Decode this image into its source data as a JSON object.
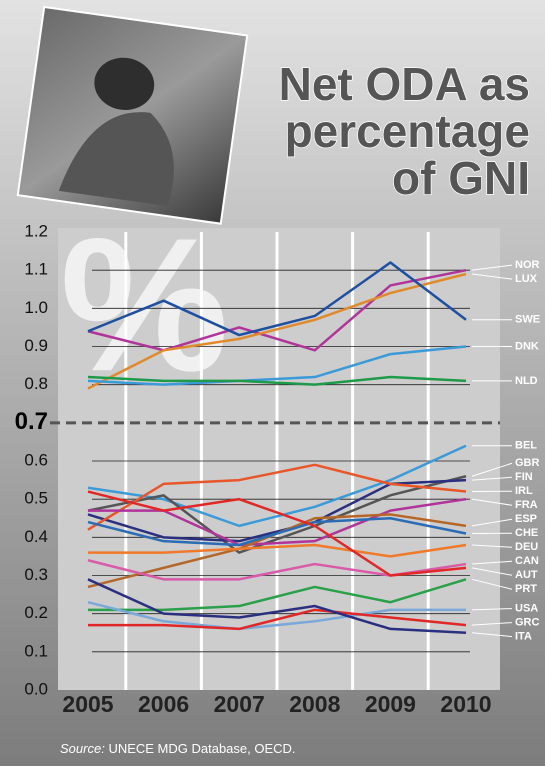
{
  "chart_data": {
    "type": "line",
    "title": [
      "Net ODA as",
      "percentage",
      "of GNI"
    ],
    "watermark": "%",
    "categories": [
      "2005",
      "2006",
      "2007",
      "2008",
      "2009",
      "2010"
    ],
    "ylim": [
      0,
      1.2
    ],
    "yticks": [
      {
        "value": 0,
        "label": "0.0"
      },
      0.1,
      0.2,
      0.3,
      0.4,
      0.5,
      0.6,
      0.7,
      0.8,
      0.9,
      {
        "value": 1,
        "label": "1.0"
      },
      1.1,
      1.2
    ],
    "reference_line": 0.7,
    "grid": true,
    "series": [
      {
        "name": "NOR",
        "color": "#b0349a",
        "values": [
          0.94,
          0.89,
          0.95,
          0.89,
          1.06,
          1.1
        ]
      },
      {
        "name": "LUX",
        "color": "#e08a2c",
        "values": [
          0.79,
          0.89,
          0.92,
          0.97,
          1.04,
          1.09
        ]
      },
      {
        "name": "SWE",
        "color": "#1f4fa0",
        "values": [
          0.94,
          1.02,
          0.93,
          0.98,
          1.12,
          0.97
        ]
      },
      {
        "name": "DNK",
        "color": "#3b9ad8",
        "values": [
          0.81,
          0.8,
          0.81,
          0.82,
          0.88,
          0.9
        ]
      },
      {
        "name": "NLD",
        "color": "#1e9a4a",
        "values": [
          0.82,
          0.81,
          0.81,
          0.8,
          0.82,
          0.81
        ]
      },
      {
        "name": "BEL",
        "color": "#3b9ad8",
        "values": [
          0.53,
          0.5,
          0.43,
          0.48,
          0.55,
          0.64
        ]
      },
      {
        "name": "GBR",
        "color": "#555555",
        "values": [
          0.47,
          0.51,
          0.36,
          0.43,
          0.51,
          0.56
        ]
      },
      {
        "name": "FIN",
        "color": "#2a2f80",
        "values": [
          0.46,
          0.4,
          0.39,
          0.44,
          0.54,
          0.55
        ]
      },
      {
        "name": "IRL",
        "color": "#e8562a",
        "values": [
          0.42,
          0.54,
          0.55,
          0.59,
          0.54,
          0.52
        ]
      },
      {
        "name": "FRA",
        "color": "#b0349a",
        "values": [
          0.47,
          0.47,
          0.38,
          0.39,
          0.47,
          0.5
        ]
      },
      {
        "name": "ESP",
        "color": "#b5672a",
        "values": [
          0.27,
          0.32,
          0.37,
          0.45,
          0.46,
          0.43
        ]
      },
      {
        "name": "CHE",
        "color": "#2b6cb5",
        "values": [
          0.44,
          0.39,
          0.38,
          0.44,
          0.45,
          0.41
        ]
      },
      {
        "name": "DEU",
        "color": "#f07a2a",
        "values": [
          0.36,
          0.36,
          0.37,
          0.38,
          0.35,
          0.38
        ]
      },
      {
        "name": "CAN",
        "color": "#d85aa8",
        "values": [
          0.34,
          0.29,
          0.29,
          0.33,
          0.3,
          0.33
        ]
      },
      {
        "name": "AUT",
        "color": "#e02828",
        "values": [
          0.52,
          0.47,
          0.5,
          0.43,
          0.3,
          0.32
        ]
      },
      {
        "name": "PRT",
        "color": "#2aa04a",
        "values": [
          0.21,
          0.21,
          0.22,
          0.27,
          0.23,
          0.29
        ]
      },
      {
        "name": "USA",
        "color": "#7aa8d8",
        "values": [
          0.23,
          0.18,
          0.16,
          0.18,
          0.21,
          0.21
        ]
      },
      {
        "name": "GRC",
        "color": "#e02828",
        "values": [
          0.17,
          0.17,
          0.16,
          0.21,
          0.19,
          0.17
        ]
      },
      {
        "name": "ITA",
        "color": "#2a2f80",
        "values": [
          0.29,
          0.2,
          0.19,
          0.22,
          0.16,
          0.15
        ]
      }
    ],
    "source_label": "Source:",
    "source": "UNECE MDG Database, OECD."
  }
}
